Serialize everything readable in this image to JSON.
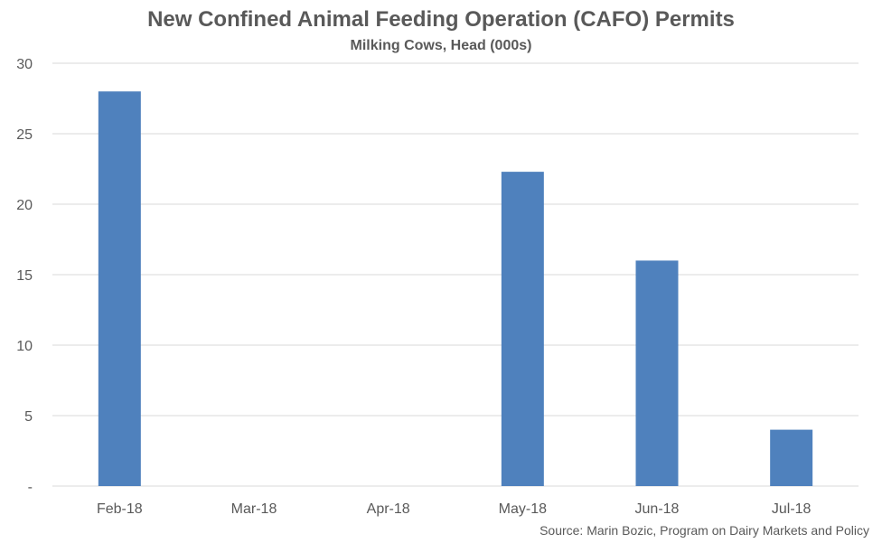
{
  "chart_data": {
    "type": "bar",
    "title": "New Confined Animal Feeding Operation (CAFO) Permits",
    "subtitle": "Milking Cows, Head (000s)",
    "source": "Source: Marin Bozic, Program on Dairy Markets and Policy",
    "categories": [
      "Feb-18",
      "Mar-18",
      "Apr-18",
      "May-18",
      "Jun-18",
      "Jul-18"
    ],
    "values": [
      28,
      0,
      0,
      22.3,
      16,
      4
    ],
    "ylim": [
      0,
      30
    ],
    "yticks": [
      0,
      5,
      10,
      15,
      20,
      25,
      30
    ],
    "ytick_labels": [
      "-",
      "5",
      "10",
      "15",
      "20",
      "25",
      "30"
    ],
    "grid": true,
    "legend": "none",
    "colors": {
      "bar": "#4f81bd",
      "grid": "#d9d9d9",
      "text": "#595959"
    }
  }
}
